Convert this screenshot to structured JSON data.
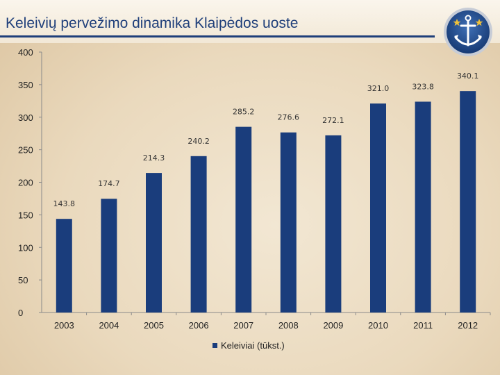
{
  "header": {
    "title": "Keleivių pervežimo dinamika Klaipėdos uoste"
  },
  "logo": {
    "icon": "anchor-emblem-icon"
  },
  "colors": {
    "bar": "#1a3d7c",
    "title": "#1f3f7a",
    "rule": "#1f3f7a"
  },
  "chart_data": {
    "type": "bar",
    "title": "",
    "xlabel": "",
    "ylabel": "",
    "categories": [
      "2003",
      "2004",
      "2005",
      "2006",
      "2007",
      "2008",
      "2009",
      "2010",
      "2011",
      "2012"
    ],
    "series": [
      {
        "name": "Keleiviai (tūkst.)",
        "values": [
          143.8,
          174.7,
          214.3,
          240.2,
          285.2,
          276.6,
          272.1,
          321.0,
          323.8,
          340.1
        ],
        "labels": [
          "143.8",
          "174.7",
          "214.3",
          "240.2",
          "285.2",
          "276.6",
          "272.1",
          "321.0",
          "323.8",
          "340.1"
        ]
      }
    ],
    "ylim": [
      0,
      400
    ],
    "yticks": [
      0,
      50,
      100,
      150,
      200,
      250,
      300,
      350,
      400
    ],
    "grid": false,
    "legend": "bottom"
  }
}
